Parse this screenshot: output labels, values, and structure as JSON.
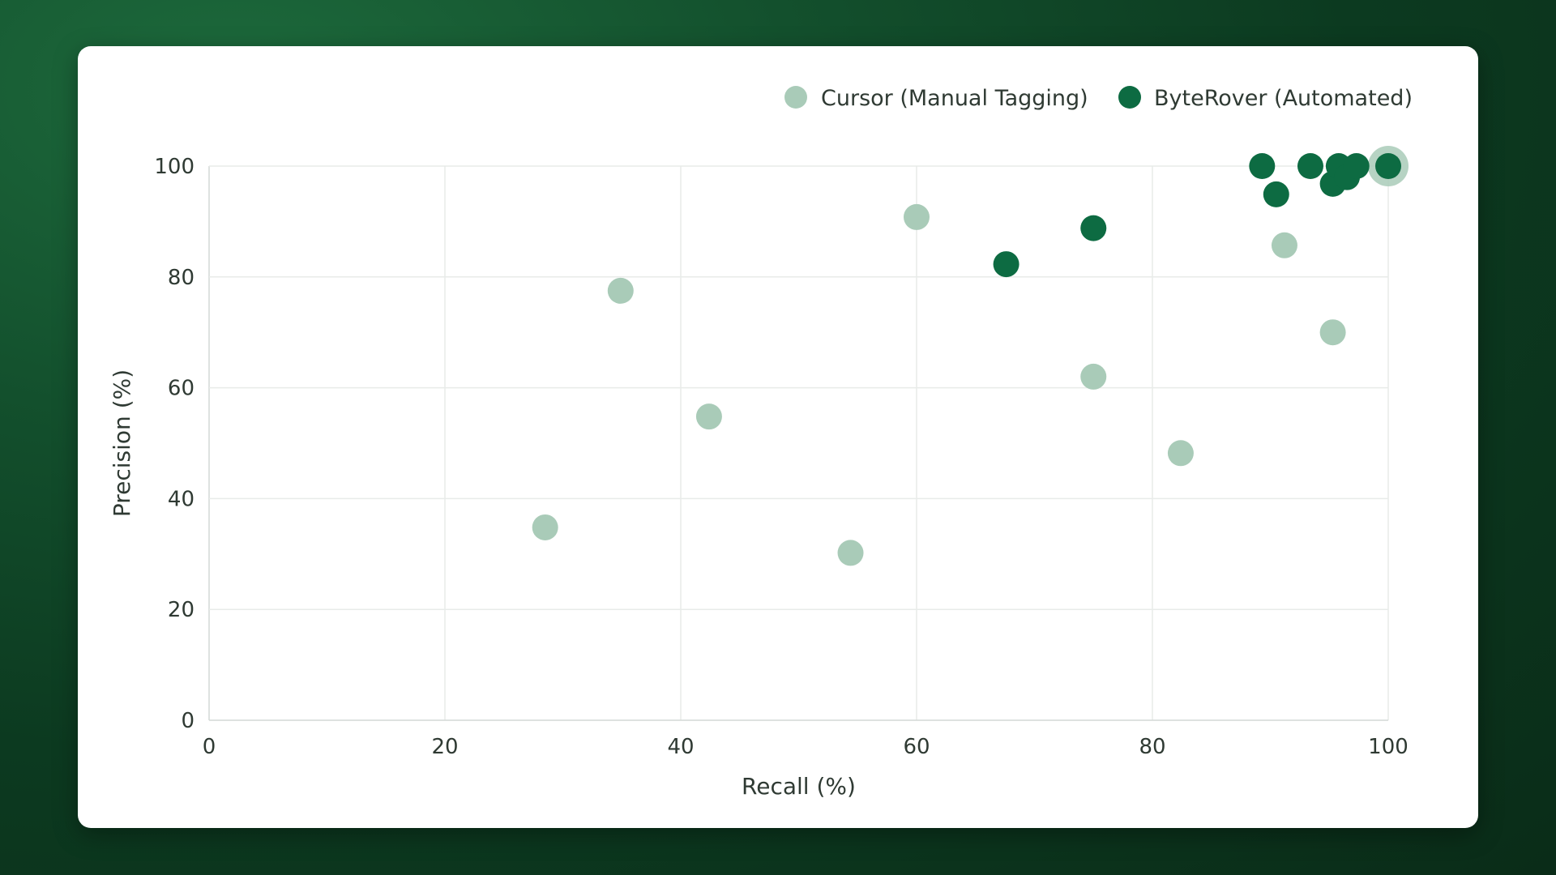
{
  "chart_data": {
    "type": "scatter",
    "title": "",
    "xlabel": "Recall (%)",
    "ylabel": "Precision (%)",
    "xlim": [
      0,
      100
    ],
    "ylim": [
      0,
      100
    ],
    "xticks": [
      "0",
      "20",
      "40",
      "60",
      "80",
      "100"
    ],
    "yticks": [
      "0",
      "20",
      "40",
      "60",
      "80",
      "100"
    ],
    "grid": true,
    "legend_position": "top-right",
    "series": [
      {
        "name": "Cursor (Manual Tagging)",
        "color": "#a9cbb8",
        "points": [
          {
            "x": 28.5,
            "y": 34.8
          },
          {
            "x": 34.9,
            "y": 77.5
          },
          {
            "x": 42.4,
            "y": 54.8
          },
          {
            "x": 54.4,
            "y": 30.2
          },
          {
            "x": 60.0,
            "y": 90.8
          },
          {
            "x": 75.0,
            "y": 62.0
          },
          {
            "x": 82.4,
            "y": 48.2
          },
          {
            "x": 91.2,
            "y": 85.7
          },
          {
            "x": 95.3,
            "y": 70.0
          },
          {
            "x": 100.0,
            "y": 100.0
          }
        ]
      },
      {
        "name": "ByteRover (Automated)",
        "color": "#0d6b42",
        "points": [
          {
            "x": 67.6,
            "y": 82.3
          },
          {
            "x": 75.0,
            "y": 88.8
          },
          {
            "x": 89.3,
            "y": 100.0
          },
          {
            "x": 90.5,
            "y": 94.9
          },
          {
            "x": 93.4,
            "y": 100.0
          },
          {
            "x": 95.3,
            "y": 96.8
          },
          {
            "x": 95.8,
            "y": 100.0
          },
          {
            "x": 96.5,
            "y": 98.0
          },
          {
            "x": 97.3,
            "y": 100.0
          },
          {
            "x": 100.0,
            "y": 100.0
          }
        ]
      }
    ]
  }
}
